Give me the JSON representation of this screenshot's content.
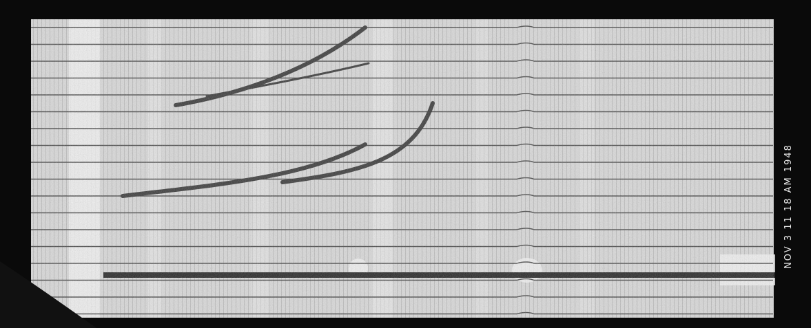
{
  "stamp": {
    "text": "NOV 3 11 18 AM 1948"
  }
}
